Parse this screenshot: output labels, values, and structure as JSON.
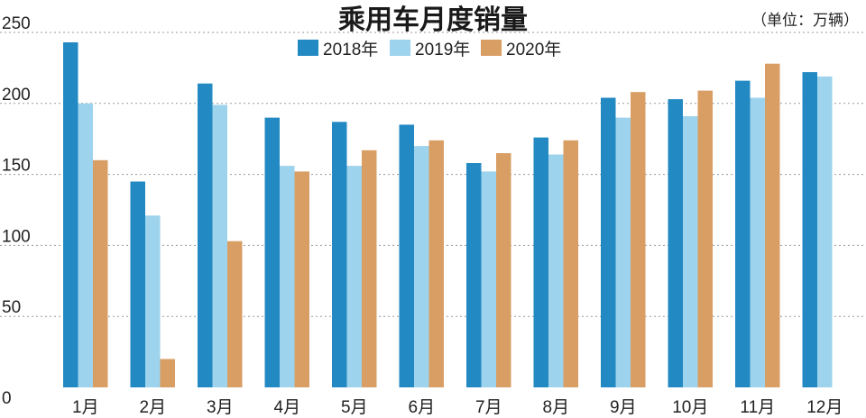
{
  "colors": {
    "s2018": "#2389c3",
    "s2019": "#9dd3ec",
    "s2020": "#d99e64",
    "grid": "#9a9a9a",
    "text": "#222222"
  },
  "chart_data": {
    "type": "bar",
    "title": "乘用车月度销量",
    "unit_label": "（单位：万辆）",
    "ylim": [
      0,
      250
    ],
    "yticks": [
      0,
      50,
      100,
      150,
      200,
      250
    ],
    "grid": true,
    "legend": "top-center",
    "categories": [
      "1月",
      "2月",
      "3月",
      "4月",
      "5月",
      "6月",
      "7月",
      "8月",
      "9月",
      "10月",
      "11月",
      "12月"
    ],
    "series": [
      {
        "name": "2018年",
        "values": [
          243,
          145,
          214,
          190,
          187,
          185,
          158,
          176,
          204,
          203,
          216,
          222
        ]
      },
      {
        "name": "2019年",
        "values": [
          200,
          121,
          199,
          156,
          156,
          170,
          152,
          164,
          190,
          191,
          204,
          219
        ]
      },
      {
        "name": "2020年",
        "values": [
          160,
          20,
          103,
          152,
          167,
          174,
          165,
          174,
          208,
          209,
          228,
          null
        ]
      }
    ]
  }
}
